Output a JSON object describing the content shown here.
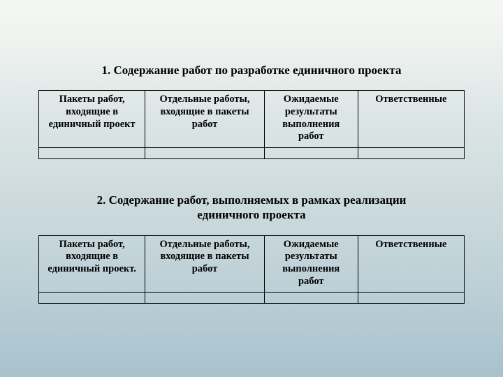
{
  "section1": {
    "heading": "1. Содержание работ по разработке единичного проекта",
    "table": {
      "columns": [
        "Пакеты работ, входящие в единичный проект",
        "Отдельные работы, входящие в пакеты работ",
        "Ожидаемые результаты выполнения работ",
        "Ответственные"
      ],
      "rows": [
        [
          "",
          "",
          "",
          ""
        ]
      ]
    }
  },
  "section2": {
    "heading": "2. Содержание работ, выполняемых в рамках реализации единичного проекта",
    "table": {
      "columns": [
        "Пакеты работ, входящие в единичный проект.",
        "Отдельные работы, входящие в пакеты работ",
        "Ожидаемые результаты выполнения работ",
        "Ответственные"
      ],
      "rows": [
        [
          "",
          "",
          "",
          ""
        ]
      ]
    }
  },
  "style": {
    "heading_fontsize": 17,
    "cell_fontsize": 14.5,
    "border_color": "#000000",
    "background_gradient": [
      "#f5f7f4",
      "#eef2ef",
      "#dde6e6",
      "#cfdcde",
      "#c1d3d8",
      "#b2c9d2",
      "#a7c1cd"
    ],
    "column_widths_pct": [
      25,
      28,
      22,
      25
    ],
    "font_family": "Times New Roman"
  }
}
